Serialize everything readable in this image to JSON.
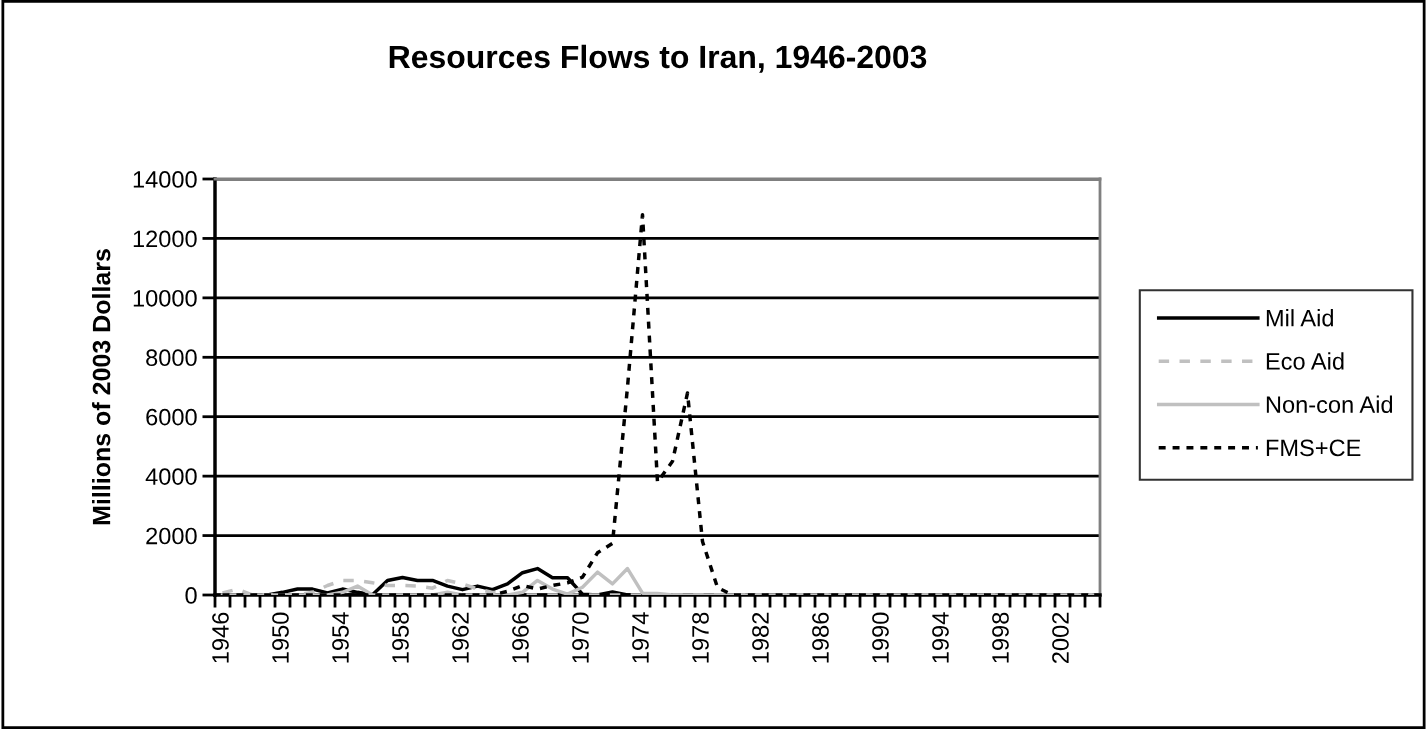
{
  "chart_data": {
    "type": "line",
    "title": "Resources Flows to Iran, 1946-2003",
    "ylabel": "Millions of 2003 Dollars",
    "categories": [
      "1946",
      null,
      null,
      null,
      "1950",
      null,
      null,
      null,
      "1954",
      null,
      null,
      null,
      "1958",
      null,
      null,
      null,
      "1962",
      null,
      null,
      null,
      "1966",
      null,
      null,
      null,
      "1970",
      null,
      null,
      null,
      "1974",
      null,
      null,
      null,
      "1978",
      null,
      null,
      null,
      "1982",
      null,
      null,
      null,
      "1986",
      null,
      null,
      null,
      "1990",
      null,
      null,
      null,
      "1994",
      null,
      null,
      null,
      "1998",
      null,
      null,
      null,
      "2002",
      null,
      null
    ],
    "series": [
      {
        "name": "Mil Aid",
        "color": "#000000",
        "line_style": "solid",
        "values": [
          0,
          0,
          0,
          0,
          90,
          200,
          200,
          70,
          200,
          90,
          10,
          490,
          590,
          490,
          490,
          300,
          180,
          300,
          180,
          375,
          750,
          890,
          580,
          580,
          30,
          0,
          100,
          0,
          0,
          0,
          0,
          0,
          0,
          0,
          0,
          0,
          0,
          0,
          0,
          0,
          0,
          0,
          0,
          0,
          0,
          0,
          0,
          0,
          0,
          0,
          0,
          0,
          0,
          0,
          0,
          0,
          0,
          0,
          0
        ]
      },
      {
        "name": "Eco Aid",
        "color": "#c0c0c0",
        "line_style": "dashed",
        "values": [
          70,
          200,
          0,
          0,
          0,
          0,
          90,
          320,
          490,
          490,
          410,
          320,
          320,
          300,
          230,
          490,
          375,
          200,
          90,
          0,
          0,
          0,
          0,
          0,
          0,
          0,
          0,
          0,
          0,
          0,
          0,
          0,
          0,
          0,
          0,
          0,
          0,
          0,
          0,
          0,
          0,
          0,
          0,
          0,
          0,
          0,
          0,
          0,
          0,
          0,
          0,
          0,
          0,
          0,
          0,
          0,
          0,
          0,
          0
        ]
      },
      {
        "name": "Non-con Aid",
        "color": "#c0c0c0",
        "line_style": "solid",
        "values": [
          0,
          0,
          0,
          0,
          0,
          0,
          0,
          0,
          90,
          300,
          0,
          0,
          0,
          0,
          0,
          90,
          0,
          0,
          0,
          0,
          90,
          490,
          200,
          30,
          260,
          770,
          375,
          890,
          60,
          50,
          0,
          0,
          0,
          0,
          0,
          0,
          0,
          0,
          0,
          0,
          0,
          0,
          0,
          0,
          0,
          0,
          0,
          0,
          0,
          0,
          0,
          0,
          0,
          0,
          0,
          0,
          0,
          0,
          0
        ]
      },
      {
        "name": "FMS+CE",
        "color": "#000000",
        "line_style": "dotted",
        "values": [
          0,
          0,
          0,
          0,
          0,
          0,
          0,
          0,
          0,
          0,
          0,
          0,
          0,
          0,
          0,
          0,
          0,
          0,
          0,
          125,
          320,
          200,
          320,
          410,
          600,
          1420,
          1740,
          7000,
          12800,
          3800,
          4500,
          6800,
          1800,
          250,
          0,
          0,
          0,
          0,
          0,
          0,
          0,
          0,
          0,
          0,
          0,
          0,
          0,
          0,
          0,
          0,
          0,
          0,
          0,
          0,
          0,
          0,
          0,
          0,
          0
        ]
      }
    ],
    "ylim": [
      0,
      14000
    ],
    "yticks": [
      0,
      2000,
      4000,
      6000,
      8000,
      10000,
      12000,
      14000
    ],
    "grid": "y",
    "legend": "right",
    "marker": "none"
  }
}
